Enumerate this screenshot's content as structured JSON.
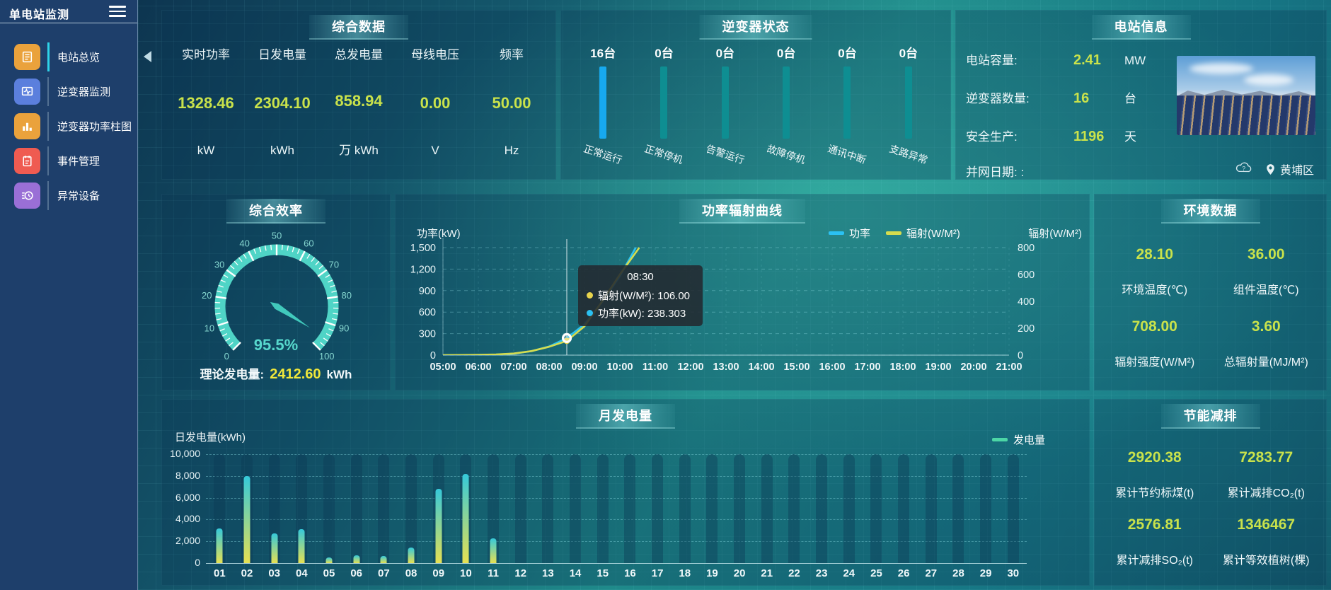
{
  "app": {
    "title": "单电站监测"
  },
  "theme": {
    "value_green": "#c9e24b",
    "value_yellow": "#f0e73a",
    "gauge_teal": "#57d8cd",
    "power_cyan": "#2bc1f2",
    "radiation_yellow": "#d6dc4e",
    "inverter_active_blue": "#17a9ef",
    "inverter_idle_teal": "#0e8e92",
    "bar_gradient_bottom": "#e6e052",
    "bar_gradient_top": "#35c9da",
    "legend_green": "#4cd6a6"
  },
  "sidebar": {
    "items": [
      {
        "label": "电站总览",
        "active": true
      },
      {
        "label": "逆变器监测",
        "active": false
      },
      {
        "label": "逆变器功率柱图",
        "active": false
      },
      {
        "label": "事件管理",
        "active": false
      },
      {
        "label": "异常设备",
        "active": false
      }
    ]
  },
  "summary": {
    "title": "综合数据",
    "metrics": [
      {
        "label": "实时功率",
        "value": "1328.46",
        "unit": "kW"
      },
      {
        "label": "日发电量",
        "value": "2304.10",
        "unit": "kWh"
      },
      {
        "label": "总发电量",
        "value": "858.94",
        "unit": "万 kWh"
      },
      {
        "label": "母线电压",
        "value": "0.00",
        "unit": "V"
      },
      {
        "label": "频率",
        "value": "50.00",
        "unit": "Hz"
      }
    ]
  },
  "inverter": {
    "title": "逆变器状态",
    "bars": [
      {
        "count": "16台",
        "label": "正常运行",
        "color": "#17a9ef"
      },
      {
        "count": "0台",
        "label": "正常停机",
        "color": "#0e8e92"
      },
      {
        "count": "0台",
        "label": "告警运行",
        "color": "#0e8e92"
      },
      {
        "count": "0台",
        "label": "故障停机",
        "color": "#0e8e92"
      },
      {
        "count": "0台",
        "label": "通讯中断",
        "color": "#0e8e92"
      },
      {
        "count": "0台",
        "label": "支路异常",
        "color": "#0e8e92"
      }
    ]
  },
  "station": {
    "title": "电站信息",
    "rows": [
      {
        "label": "电站容量:",
        "value": "2.41",
        "unit": "MW"
      },
      {
        "label": "逆变器数量:",
        "value": "16",
        "unit": "台"
      },
      {
        "label": "安全生产:",
        "value": "1196",
        "unit": "天"
      }
    ],
    "grid_date_label": "并网日期:  :",
    "location": "黄埔区"
  },
  "efficiency": {
    "title": "综合效率",
    "value_display": "95.5%",
    "theory_label": "理论发电量:",
    "theory_value": "2412.60",
    "theory_unit": "kWh"
  },
  "power_chart": {
    "title": "功率辐射曲线",
    "left_axis_title": "功率(kW)",
    "right_axis_title": "辐射(W/M²)",
    "legend": [
      {
        "label": "功率",
        "color": "#2bc1f2"
      },
      {
        "label": "辐射(W/M²)",
        "color": "#d6dc4e"
      }
    ],
    "tooltip": {
      "time": "08:30",
      "items": [
        {
          "text": "辐射(W/M²): 106.00",
          "color": "#e8d44d"
        },
        {
          "text": "功率(kW): 238.303",
          "color": "#2bc1f2"
        }
      ]
    }
  },
  "environment": {
    "title": "环境数据",
    "metrics": [
      {
        "value": "28.10",
        "label": "环境温度(℃)"
      },
      {
        "value": "36.00",
        "label": "组件温度(℃)"
      },
      {
        "value": "708.00",
        "label": "辐射强度(W/M²)"
      },
      {
        "value": "3.60",
        "label": "总辐射量(MJ/M²)"
      }
    ]
  },
  "monthly": {
    "title": "月发电量",
    "ylabel": "日发电量(kWh)",
    "legend": "发电量"
  },
  "saving": {
    "title": "节能减排",
    "metrics": [
      {
        "value": "2920.38",
        "label": "累计节约标煤(t)"
      },
      {
        "value": "7283.77",
        "label": "累计减排CO₂(t)"
      },
      {
        "value": "2576.81",
        "label": "累计减排SO₂(t)"
      },
      {
        "value": "1346467",
        "label": "累计等效植树(棵)"
      }
    ]
  },
  "chart_data": [
    {
      "type": "gauge",
      "panel": "综合效率",
      "min": 0,
      "max": 100,
      "value": 95.5,
      "unit": "%",
      "major_ticks": [
        0,
        10,
        20,
        30,
        40,
        50,
        60,
        70,
        80,
        90,
        100
      ]
    },
    {
      "type": "line",
      "panel": "功率辐射曲线",
      "x_labels": [
        "05:00",
        "06:00",
        "07:00",
        "08:00",
        "09:00",
        "10:00",
        "11:00",
        "12:00",
        "13:00",
        "14:00",
        "15:00",
        "16:00",
        "17:00",
        "18:00",
        "19:00",
        "20:00",
        "21:00"
      ],
      "left_axis": {
        "title": "功率(kW)",
        "min": 0,
        "max": 1500,
        "tick_labels": [
          "0",
          "300",
          "600",
          "900",
          "1,200",
          "1,500"
        ]
      },
      "right_axis": {
        "title": "辐射(W/M²)",
        "min": 0,
        "max": 800,
        "tick_labels": [
          "0",
          "200",
          "400",
          "600",
          "800"
        ]
      },
      "series": [
        {
          "name": "功率",
          "unit": "kW",
          "axis": "left",
          "color": "#2bc1f2",
          "points": [
            [
              5,
              0
            ],
            [
              5.5,
              1
            ],
            [
              6,
              3
            ],
            [
              6.5,
              8
            ],
            [
              7,
              20
            ],
            [
              7.5,
              55
            ],
            [
              8,
              120
            ],
            [
              8.5,
              238.303
            ],
            [
              9,
              430
            ],
            [
              9.5,
              740
            ],
            [
              10,
              1100
            ],
            [
              10.45,
              1500
            ]
          ]
        },
        {
          "name": "辐射(W/M²)",
          "unit": "W/M²",
          "axis": "right",
          "color": "#d6dc4e",
          "points": [
            [
              5,
              0
            ],
            [
              5.5,
              1
            ],
            [
              6,
              2
            ],
            [
              6.5,
              5
            ],
            [
              7,
              12
            ],
            [
              7.5,
              30
            ],
            [
              8,
              62
            ],
            [
              8.5,
              106
            ],
            [
              9,
              215
            ],
            [
              9.5,
              400
            ],
            [
              10,
              600
            ],
            [
              10.55,
              800
            ]
          ]
        }
      ],
      "highlight": {
        "time": "08:30",
        "x": 8.5,
        "power": 238.303,
        "radiation": 106.0
      }
    },
    {
      "type": "bar",
      "panel": "月发电量",
      "ylabel": "日发电量(kWh)",
      "legend": "发电量",
      "ylim": [
        0,
        10000
      ],
      "ytick_labels": [
        "0",
        "2,000",
        "4,000",
        "6,000",
        "8,000",
        "10,000"
      ],
      "categories": [
        "01",
        "02",
        "03",
        "04",
        "05",
        "06",
        "07",
        "08",
        "09",
        "10",
        "11",
        "12",
        "13",
        "14",
        "15",
        "16",
        "17",
        "18",
        "19",
        "20",
        "21",
        "22",
        "23",
        "24",
        "25",
        "26",
        "27",
        "28",
        "29",
        "30"
      ],
      "values": [
        3200,
        8000,
        2700,
        3100,
        500,
        750,
        650,
        1450,
        6800,
        8200,
        2250,
        0,
        0,
        0,
        0,
        0,
        0,
        0,
        0,
        0,
        0,
        0,
        0,
        0,
        0,
        0,
        0,
        0,
        0,
        0
      ]
    }
  ]
}
